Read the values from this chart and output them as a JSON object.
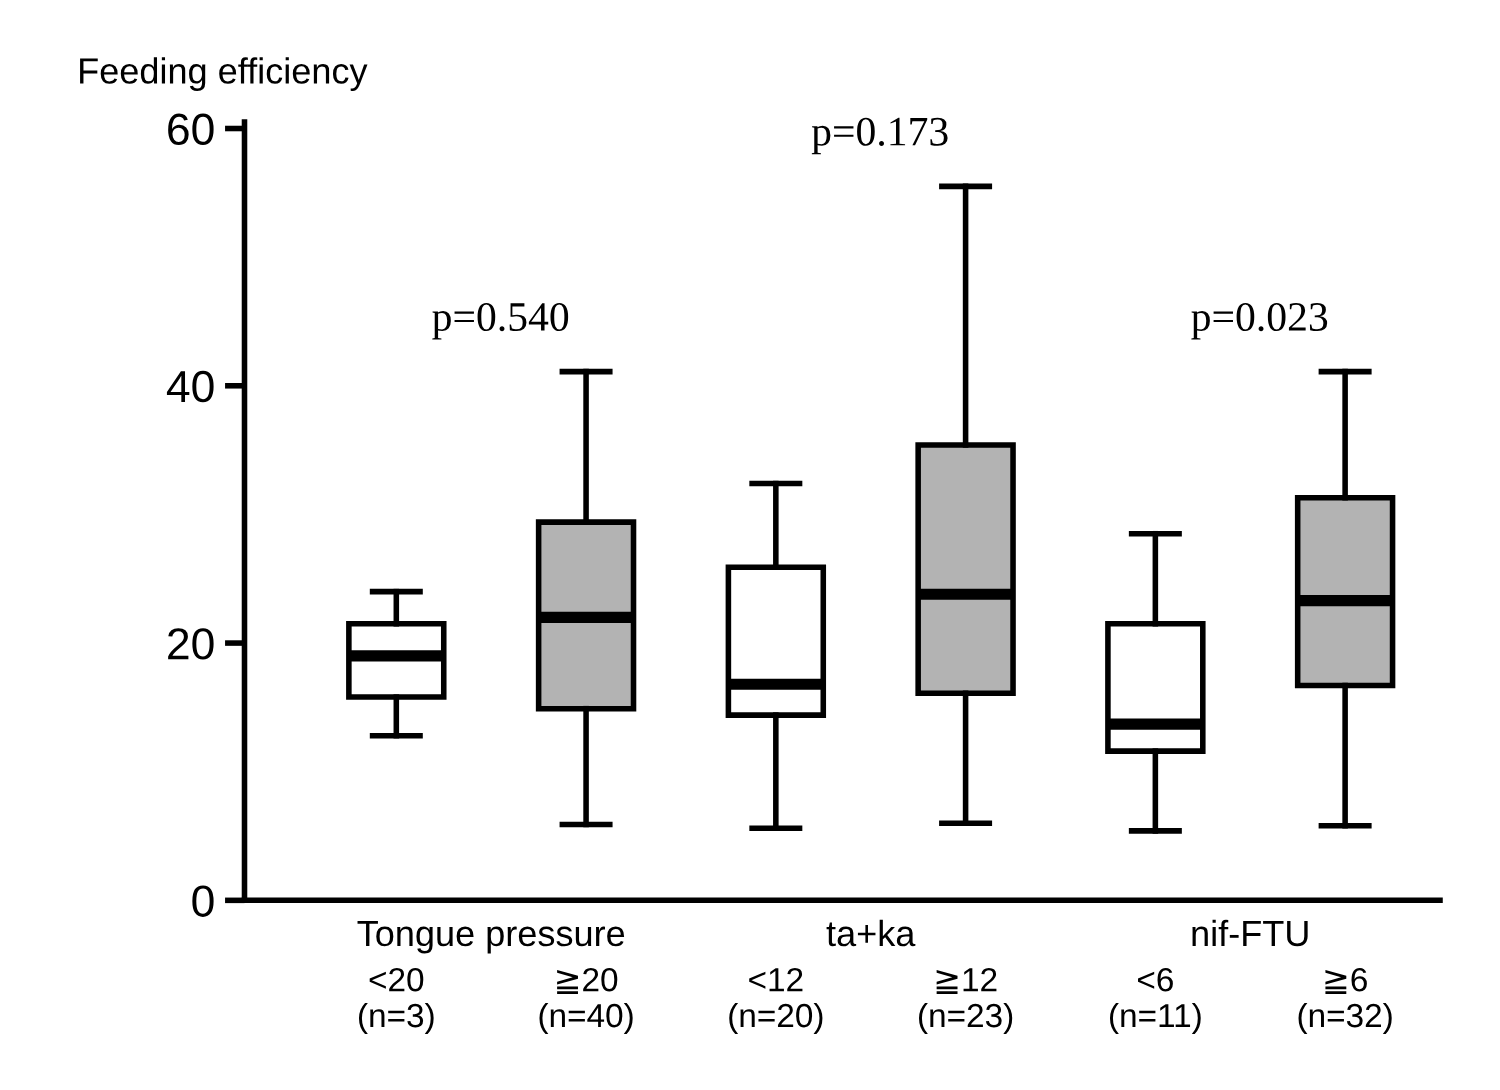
{
  "chart_data": {
    "type": "box",
    "ylabel": "Feeding efficiency",
    "categories": [
      "<20\n(n=3)",
      "≧20\n(n=40)",
      "<12\n(n=20)",
      "≧12\n(n=23)",
      "<6\n(n=11)",
      "≧6\n(n=32)"
    ],
    "boxes": [
      {
        "low": 12.8,
        "q1": 15.8,
        "median": 19.0,
        "q3": 21.5,
        "high": 24.0
      },
      {
        "low": 5.9,
        "q1": 14.9,
        "median": 22.0,
        "q3": 29.4,
        "high": 41.1
      },
      {
        "low": 5.6,
        "q1": 14.4,
        "median": 16.8,
        "q3": 25.9,
        "high": 32.4
      },
      {
        "low": 6.0,
        "q1": 16.1,
        "median": 23.8,
        "q3": 35.4,
        "high": 55.5
      },
      {
        "low": 5.4,
        "q1": 11.6,
        "median": 13.7,
        "q3": 21.5,
        "high": 28.5
      },
      {
        "low": 5.8,
        "q1": 16.7,
        "median": 23.3,
        "q3": 31.3,
        "high": 41.1
      }
    ],
    "colors": [
      "#ffffff",
      "#b3b3b3",
      "#ffffff",
      "#b3b3b3",
      "#ffffff",
      "#b3b3b3"
    ],
    "ylim": [
      0,
      60.5
    ],
    "yticks": [
      0,
      20,
      40,
      60
    ],
    "grid": false,
    "legend": false,
    "annotations": [
      "Tongue pressure",
      "ta+ka",
      "nif-FTU",
      "p=0.540",
      "p=0.173",
      "p=0.023"
    ]
  }
}
